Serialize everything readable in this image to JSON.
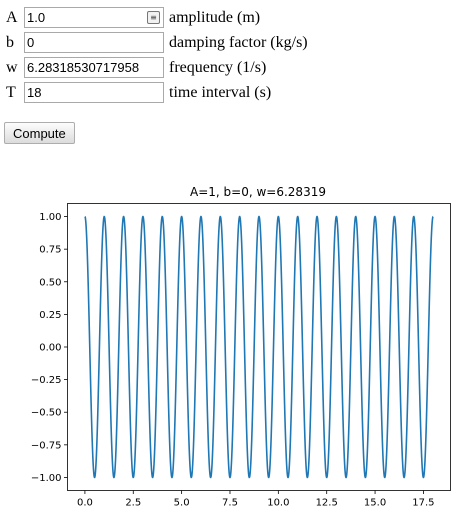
{
  "form": {
    "fields": [
      {
        "symbol": "A",
        "value": "1.0",
        "label": "amplitude (m)"
      },
      {
        "symbol": "b",
        "value": "0",
        "label": "damping factor (kg/s)"
      },
      {
        "symbol": "w",
        "value": "6.28318530717958",
        "label": "frequency (1/s)"
      },
      {
        "symbol": "T",
        "value": "18",
        "label": "time interval (s)"
      }
    ],
    "compute_label": "Compute"
  },
  "chart_data": {
    "type": "line",
    "title": "A=1, b=0, w=6.28319",
    "xlabel": "",
    "ylabel": "",
    "xlim": [
      -0.9,
      18.9
    ],
    "ylim": [
      -1.1,
      1.1
    ],
    "x_ticks": [
      0.0,
      2.5,
      5.0,
      7.5,
      10.0,
      12.5,
      15.0,
      17.5
    ],
    "x_tick_labels": [
      "0.0",
      "2.5",
      "5.0",
      "7.5",
      "10.0",
      "12.5",
      "15.0",
      "17.5"
    ],
    "y_ticks": [
      1.0,
      0.75,
      0.5,
      0.25,
      0.0,
      -0.25,
      -0.5,
      -0.75,
      -1.0
    ],
    "y_tick_labels": [
      "1.00",
      "0.75",
      "0.50",
      "0.25",
      "0.00",
      "−0.25",
      "−0.50",
      "−0.75",
      "−1.00"
    ],
    "grid": false,
    "series": [
      {
        "function": "A*exp(-b*t)*cos(w*t)",
        "A": 1,
        "b": 0,
        "w": 6.28319,
        "t_range": [
          0,
          18
        ],
        "color": "#1f77b4"
      }
    ]
  }
}
